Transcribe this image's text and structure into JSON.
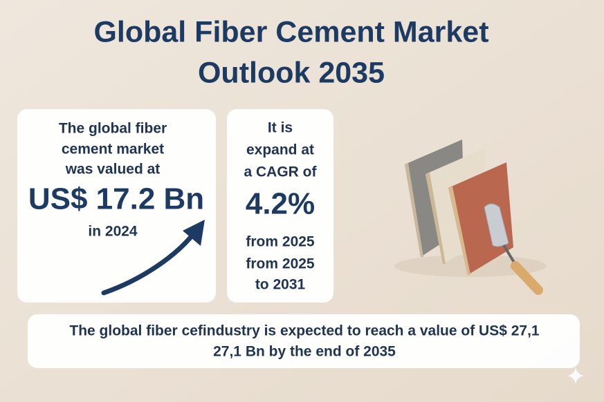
{
  "header": {
    "title_lines": [
      "Global Fiber Cement Market",
      "Outlook 2035"
    ]
  },
  "card_market": {
    "lines": [
      "The global fiber",
      "cement market",
      "was valued at"
    ],
    "value": "US$ 17.2 Bn",
    "year": "in 2024"
  },
  "card_cagr": {
    "lines": [
      "It is",
      "expand at",
      "a CAGR of"
    ],
    "value": "4.2%",
    "after_lines": [
      "from 2025",
      "from 2025",
      "to 2031"
    ]
  },
  "footer": {
    "lines": [
      "The global fiber cefindustry is expected to reach a value of US$ 27,1",
      "27,1 Bn by the end of 2035"
    ]
  }
}
